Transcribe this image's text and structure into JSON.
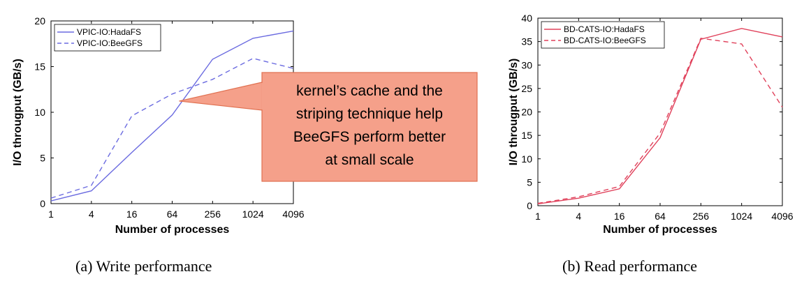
{
  "chart_data": [
    {
      "type": "line",
      "caption": "(a)  Write performance",
      "xlabel": "Number of processes",
      "ylabel": "I/O througput (GB/s)",
      "categories": [
        "1",
        "4",
        "16",
        "64",
        "256",
        "1024",
        "4096"
      ],
      "ylim": [
        0,
        20
      ],
      "yticks": [
        0,
        5,
        10,
        15,
        20
      ],
      "grid": false,
      "legend_position": "top-left",
      "series": [
        {
          "name": "VPIC-IO:HadaFS",
          "style": "solid",
          "color": "#6b6be0",
          "values": [
            0.3,
            1.4,
            5.6,
            9.7,
            15.8,
            18.1,
            18.9
          ]
        },
        {
          "name": "VPIC-IO:BeeGFS",
          "style": "dashed",
          "color": "#6b6be0",
          "values": [
            0.6,
            2.0,
            9.6,
            12.0,
            13.6,
            15.9,
            14.8
          ]
        }
      ],
      "annotation": {
        "lines": [
          "kernel’s cache and the",
          "striping technique help",
          "BeeGFS perform better",
          "at small scale"
        ],
        "fill": "#f5a08a",
        "border": "#e07050"
      }
    },
    {
      "type": "line",
      "caption": "(b)  Read performance",
      "xlabel": "Number of processes",
      "ylabel": "I/O througput (GB/s)",
      "categories": [
        "1",
        "4",
        "16",
        "64",
        "256",
        "1024",
        "4096"
      ],
      "ylim": [
        0,
        40
      ],
      "yticks": [
        0,
        5,
        10,
        15,
        20,
        25,
        30,
        35,
        40
      ],
      "grid": false,
      "legend_position": "top-left",
      "series": [
        {
          "name": "BD-CATS-IO:HadaFS",
          "style": "solid",
          "color": "#e0405a",
          "values": [
            0.4,
            1.6,
            3.6,
            14.5,
            35.5,
            37.8,
            36.0
          ]
        },
        {
          "name": "BD-CATS-IO:BeeGFS",
          "style": "dashed",
          "color": "#e0405a",
          "values": [
            0.5,
            1.9,
            4.1,
            15.5,
            35.7,
            34.5,
            21.0
          ]
        }
      ]
    }
  ]
}
